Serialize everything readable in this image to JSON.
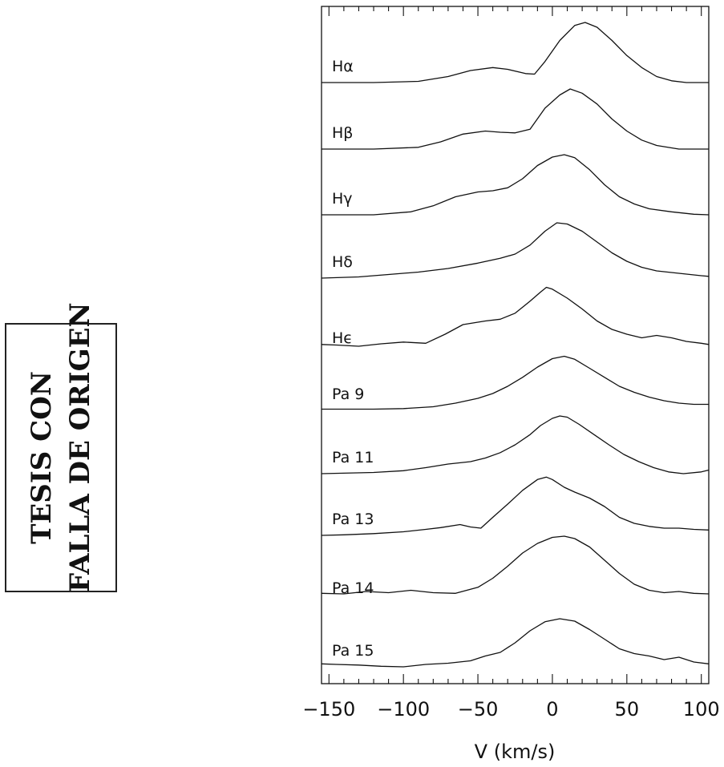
{
  "stamp": {
    "line1": "TESIS CON",
    "line2": "FALLA DE ORIGEN"
  },
  "chart_data": {
    "type": "line",
    "layout": "stacked",
    "xlabel": "V (km/s)",
    "xlim": [
      -155,
      105
    ],
    "xticks": [
      -150,
      -100,
      -50,
      0,
      50,
      100
    ],
    "xtick_labels": [
      "−150",
      "−100",
      "−50",
      "0",
      "50",
      "100"
    ],
    "minor_tick_step": 10,
    "ylabel": "",
    "series": [
      {
        "name": "Hα",
        "color": "#111111",
        "x": [
          -155,
          -120,
          -90,
          -70,
          -55,
          -40,
          -30,
          -18,
          -12,
          -5,
          5,
          15,
          22,
          30,
          40,
          50,
          60,
          70,
          80,
          90,
          105
        ],
        "y": [
          0,
          0,
          0.02,
          0.1,
          0.2,
          0.25,
          0.22,
          0.15,
          0.14,
          0.35,
          0.7,
          0.95,
          1,
          0.92,
          0.7,
          0.45,
          0.25,
          0.1,
          0.03,
          0,
          0
        ]
      },
      {
        "name": "Hβ",
        "color": "#111111",
        "x": [
          -155,
          -120,
          -90,
          -75,
          -60,
          -45,
          -35,
          -25,
          -15,
          -5,
          5,
          12,
          20,
          30,
          40,
          50,
          60,
          70,
          85,
          105
        ],
        "y": [
          0,
          0,
          0.03,
          0.12,
          0.25,
          0.3,
          0.28,
          0.27,
          0.33,
          0.68,
          0.9,
          1,
          0.93,
          0.75,
          0.5,
          0.3,
          0.15,
          0.06,
          0,
          0
        ]
      },
      {
        "name": "Hγ",
        "color": "#111111",
        "x": [
          -155,
          -120,
          -95,
          -80,
          -65,
          -50,
          -40,
          -30,
          -20,
          -10,
          0,
          8,
          15,
          25,
          35,
          45,
          55,
          65,
          80,
          95,
          105
        ],
        "y": [
          0,
          0,
          0.05,
          0.15,
          0.3,
          0.38,
          0.4,
          0.45,
          0.6,
          0.82,
          0.96,
          1,
          0.95,
          0.75,
          0.5,
          0.3,
          0.18,
          0.1,
          0.05,
          0.01,
          0
        ]
      },
      {
        "name": "Hδ",
        "color": "#111111",
        "x": [
          -155,
          -130,
          -110,
          -90,
          -70,
          -50,
          -35,
          -25,
          -15,
          -5,
          3,
          10,
          20,
          30,
          40,
          50,
          60,
          70,
          85,
          100,
          105
        ],
        "y": [
          0,
          0.02,
          0.06,
          0.1,
          0.16,
          0.25,
          0.33,
          0.4,
          0.55,
          0.78,
          0.92,
          0.9,
          0.78,
          0.6,
          0.42,
          0.28,
          0.18,
          0.12,
          0.08,
          0.04,
          0.03
        ]
      },
      {
        "name": "Hϵ",
        "color": "#111111",
        "x": [
          -155,
          -145,
          -130,
          -115,
          -100,
          -85,
          -72,
          -60,
          -45,
          -35,
          -25,
          -15,
          -8,
          -4,
          0,
          10,
          20,
          30,
          40,
          50,
          60,
          70,
          80,
          90,
          100,
          105
        ],
        "y": [
          0.03,
          0.02,
          0,
          0.04,
          0.07,
          0.05,
          0.2,
          0.36,
          0.42,
          0.45,
          0.55,
          0.75,
          0.9,
          0.98,
          0.95,
          0.8,
          0.62,
          0.42,
          0.28,
          0.2,
          0.14,
          0.18,
          0.14,
          0.08,
          0.05,
          0.03
        ]
      },
      {
        "name": "Pa 9",
        "color": "#111111",
        "x": [
          -155,
          -120,
          -100,
          -80,
          -65,
          -50,
          -40,
          -30,
          -20,
          -10,
          0,
          8,
          15,
          25,
          35,
          45,
          55,
          65,
          75,
          85,
          95,
          105
        ],
        "y": [
          0.02,
          0.02,
          0.03,
          0.06,
          0.12,
          0.2,
          0.28,
          0.4,
          0.55,
          0.72,
          0.86,
          0.9,
          0.85,
          0.7,
          0.55,
          0.4,
          0.3,
          0.22,
          0.16,
          0.12,
          0.1,
          0.1
        ]
      },
      {
        "name": "Pa 11",
        "color": "#111111",
        "x": [
          -155,
          -120,
          -100,
          -85,
          -70,
          -55,
          -45,
          -35,
          -25,
          -15,
          -8,
          0,
          5,
          10,
          18,
          28,
          38,
          48,
          58,
          68,
          78,
          88,
          100,
          105
        ],
        "y": [
          0,
          0.02,
          0.05,
          0.1,
          0.16,
          0.2,
          0.26,
          0.35,
          0.48,
          0.65,
          0.8,
          0.92,
          0.96,
          0.94,
          0.82,
          0.65,
          0.48,
          0.32,
          0.2,
          0.1,
          0.03,
          0,
          0.03,
          0.06
        ]
      },
      {
        "name": "Pa 13",
        "color": "#111111",
        "x": [
          -155,
          -140,
          -120,
          -100,
          -85,
          -75,
          -62,
          -55,
          -48,
          -40,
          -30,
          -20,
          -10,
          -4,
          0,
          8,
          15,
          25,
          35,
          45,
          55,
          65,
          75,
          85,
          95,
          105
        ],
        "y": [
          0,
          0.01,
          0.03,
          0.06,
          0.1,
          0.13,
          0.18,
          0.14,
          0.12,
          0.3,
          0.52,
          0.75,
          0.93,
          0.97,
          0.93,
          0.8,
          0.72,
          0.62,
          0.48,
          0.3,
          0.2,
          0.15,
          0.12,
          0.12,
          0.1,
          0.09
        ]
      },
      {
        "name": "Pa 14",
        "color": "#111111",
        "x": [
          -155,
          -140,
          -125,
          -110,
          -95,
          -80,
          -65,
          -50,
          -40,
          -30,
          -20,
          -10,
          0,
          8,
          15,
          25,
          35,
          45,
          55,
          65,
          75,
          85,
          95,
          105
        ],
        "y": [
          0.05,
          0.04,
          0.08,
          0.06,
          0.1,
          0.06,
          0.05,
          0.15,
          0.3,
          0.5,
          0.72,
          0.88,
          0.98,
          1,
          0.96,
          0.82,
          0.6,
          0.38,
          0.2,
          0.1,
          0.06,
          0.08,
          0.05,
          0.04
        ]
      },
      {
        "name": "Pa 15",
        "color": "#111111",
        "x": [
          -155,
          -145,
          -130,
          -115,
          -100,
          -85,
          -70,
          -55,
          -45,
          -35,
          -25,
          -15,
          -5,
          5,
          15,
          25,
          35,
          45,
          55,
          65,
          75,
          85,
          95,
          105
        ],
        "y": [
          0.05,
          0.04,
          0.03,
          0.01,
          0,
          0.04,
          0.06,
          0.1,
          0.18,
          0.24,
          0.4,
          0.6,
          0.75,
          0.8,
          0.76,
          0.62,
          0.46,
          0.3,
          0.22,
          0.18,
          0.12,
          0.16,
          0.08,
          0.05
        ]
      }
    ]
  }
}
